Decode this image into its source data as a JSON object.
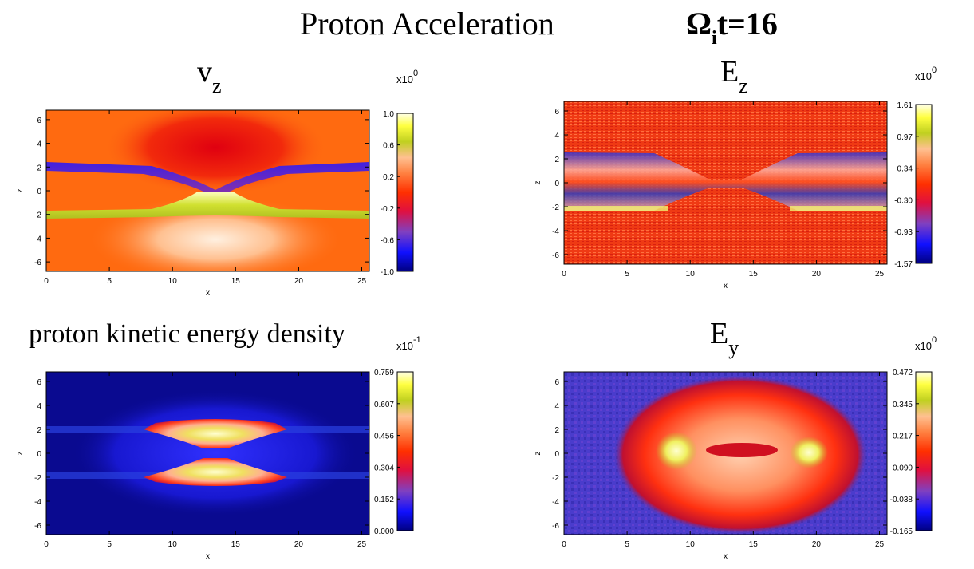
{
  "title": {
    "text": "Proton Acceleration",
    "time_label_symbol": "Ω",
    "time_label_sub": "i",
    "time_label_rest": "t=16"
  },
  "chart_data": [
    {
      "type": "heatmap",
      "id": "vz",
      "title_main": "v",
      "title_sub": "z",
      "xlabel": "x",
      "ylabel": "z",
      "xlim": [
        0,
        25.6
      ],
      "ylim": [
        -6.8,
        6.8
      ],
      "xticks": [
        "0",
        "5",
        "10",
        "15",
        "20",
        "25"
      ],
      "xtick_values": [
        0,
        5,
        10,
        15,
        20,
        25
      ],
      "yticks": [
        "6",
        "4",
        "2",
        "0",
        "-2",
        "-4",
        "-6"
      ],
      "ytick_values": [
        6,
        4,
        2,
        0,
        -2,
        -4,
        -6
      ],
      "colorbar": {
        "multiplier_base": "x10",
        "multiplier_exp": "0",
        "ticks": [
          "1.0",
          "0.6",
          "0.2",
          "-0.2",
          "-0.6",
          "-1.0"
        ],
        "range": [
          -1.0,
          1.0
        ]
      },
      "background": "#ff6a10"
    },
    {
      "type": "heatmap",
      "id": "ez",
      "title_main": "E",
      "title_sub": "z",
      "xlabel": "x",
      "ylabel": "z",
      "xlim": [
        0,
        25.6
      ],
      "ylim": [
        -6.8,
        6.8
      ],
      "xticks": [
        "0",
        "5",
        "10",
        "15",
        "20",
        "25"
      ],
      "xtick_values": [
        0,
        5,
        10,
        15,
        20,
        25
      ],
      "yticks": [
        "6",
        "4",
        "2",
        "0",
        "-2",
        "-4",
        "-6"
      ],
      "ytick_values": [
        6,
        4,
        2,
        0,
        -2,
        -4,
        -6
      ],
      "colorbar": {
        "multiplier_base": "x10",
        "multiplier_exp": "0",
        "ticks": [
          "1.61",
          "0.97",
          "0.34",
          "-0.30",
          "-0.93",
          "-1.57"
        ],
        "range": [
          -1.57,
          1.61
        ]
      },
      "background": "#ef3a14"
    },
    {
      "type": "heatmap",
      "id": "ke",
      "title_main": "proton kinetic energy density",
      "title_sub": "",
      "xlabel": "x",
      "ylabel": "z",
      "xlim": [
        0,
        25.6
      ],
      "ylim": [
        -6.8,
        6.8
      ],
      "xticks": [
        "0",
        "5",
        "10",
        "15",
        "20",
        "25"
      ],
      "xtick_values": [
        0,
        5,
        10,
        15,
        20,
        25
      ],
      "yticks": [
        "6",
        "4",
        "2",
        "0",
        "-2",
        "-4",
        "-6"
      ],
      "ytick_values": [
        6,
        4,
        2,
        0,
        -2,
        -4,
        -6
      ],
      "colorbar": {
        "multiplier_base": "x10",
        "multiplier_exp": "-1",
        "ticks": [
          "0.759",
          "0.607",
          "0.456",
          "0.304",
          "0.152",
          "0.000"
        ],
        "range": [
          0.0,
          0.759
        ]
      },
      "background": "#0a0a90"
    },
    {
      "type": "heatmap",
      "id": "ey",
      "title_main": "E",
      "title_sub": "y",
      "xlabel": "x",
      "ylabel": "z",
      "xlim": [
        0,
        25.6
      ],
      "ylim": [
        -6.8,
        6.8
      ],
      "xticks": [
        "0",
        "5",
        "10",
        "15",
        "20",
        "25"
      ],
      "xtick_values": [
        0,
        5,
        10,
        15,
        20,
        25
      ],
      "yticks": [
        "6",
        "4",
        "2",
        "0",
        "-2",
        "-4",
        "-6"
      ],
      "ytick_values": [
        6,
        4,
        2,
        0,
        -2,
        -4,
        -6
      ],
      "colorbar": {
        "multiplier_base": "x10",
        "multiplier_exp": "0",
        "ticks": [
          "0.472",
          "0.345",
          "0.217",
          "0.090",
          "-0.038",
          "-0.165"
        ],
        "range": [
          -0.165,
          0.472
        ]
      },
      "background": "#4a3ccc"
    }
  ]
}
